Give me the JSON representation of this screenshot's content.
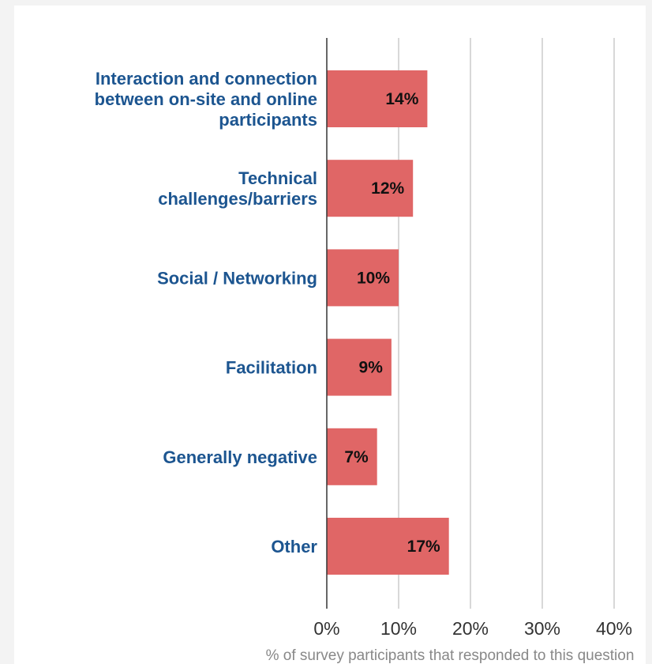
{
  "chart_data": {
    "type": "bar",
    "orientation": "horizontal",
    "categories": [
      "Interaction and connection between on-site and online participants",
      "Technical challenges/barriers",
      "Social / Networking",
      "Facilitation",
      "Generally negative",
      "Other"
    ],
    "category_lines": [
      [
        "Interaction and connection",
        "between on-site and online",
        "participants"
      ],
      [
        "Technical",
        "challenges/barriers"
      ],
      [
        "Social / Networking"
      ],
      [
        "Facilitation"
      ],
      [
        "Generally negative"
      ],
      [
        "Other"
      ]
    ],
    "values": [
      14,
      12,
      10,
      9,
      7,
      17
    ],
    "value_labels": [
      "14%",
      "12%",
      "10%",
      "9%",
      "7%",
      "17%"
    ],
    "title": "",
    "xlabel": "% of survey participants that responded to this question",
    "ylabel": "",
    "xlim": [
      0,
      40
    ],
    "xticks": [
      0,
      10,
      20,
      30,
      40
    ],
    "xtick_labels": [
      "0%",
      "10%",
      "20%",
      "30%",
      "40%"
    ],
    "grid": "vertical",
    "legend": "none",
    "colors": {
      "bar": "#e06666",
      "category_label": "#1c5590",
      "bar_label": "#111111",
      "grid": "#cccccc",
      "axis": "#333333",
      "axis_title": "#888888"
    }
  }
}
